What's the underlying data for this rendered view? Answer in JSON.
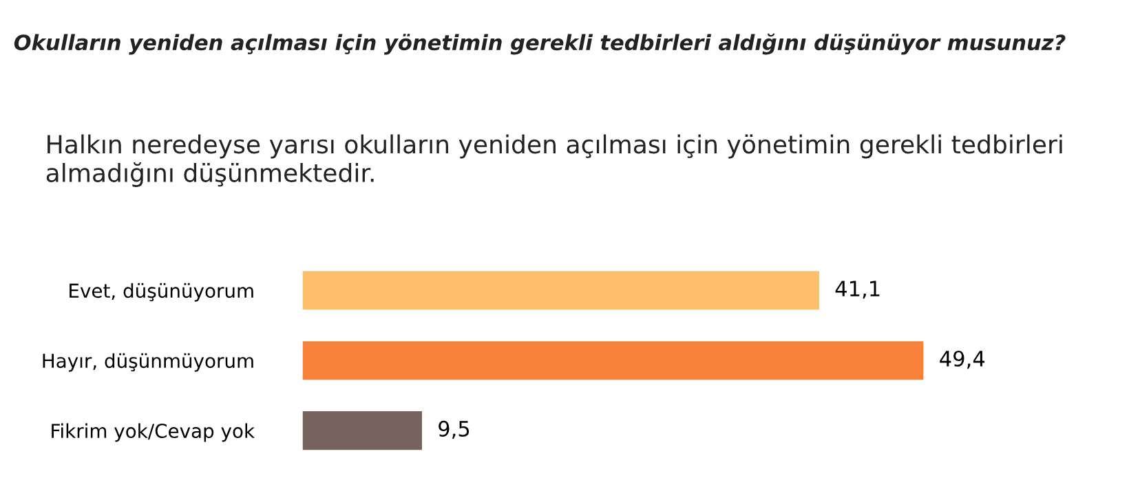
{
  "chart_data": {
    "type": "bar",
    "orientation": "horizontal",
    "title": "Okulların yeniden açılması için yönetimin gerekli tedbirleri aldığını düşünüyor musunuz?",
    "subtitle": "Halkın neredeyse yarısı okulların yeniden açılması için yönetimin gerekli tedbirleri almadığını düşünmektedir.",
    "categories": [
      "Evet, düşünüyorum",
      "Hayır, düşünmüyorum",
      "Fikrim yok/Cevap yok"
    ],
    "values": [
      41.1,
      49.4,
      9.5
    ],
    "colors": [
      "#fdbf6a",
      "#f9823a",
      "#76635e"
    ],
    "value_labels": [
      "41,1",
      "49,4",
      "9,5"
    ],
    "grid": false,
    "legend": false
  }
}
